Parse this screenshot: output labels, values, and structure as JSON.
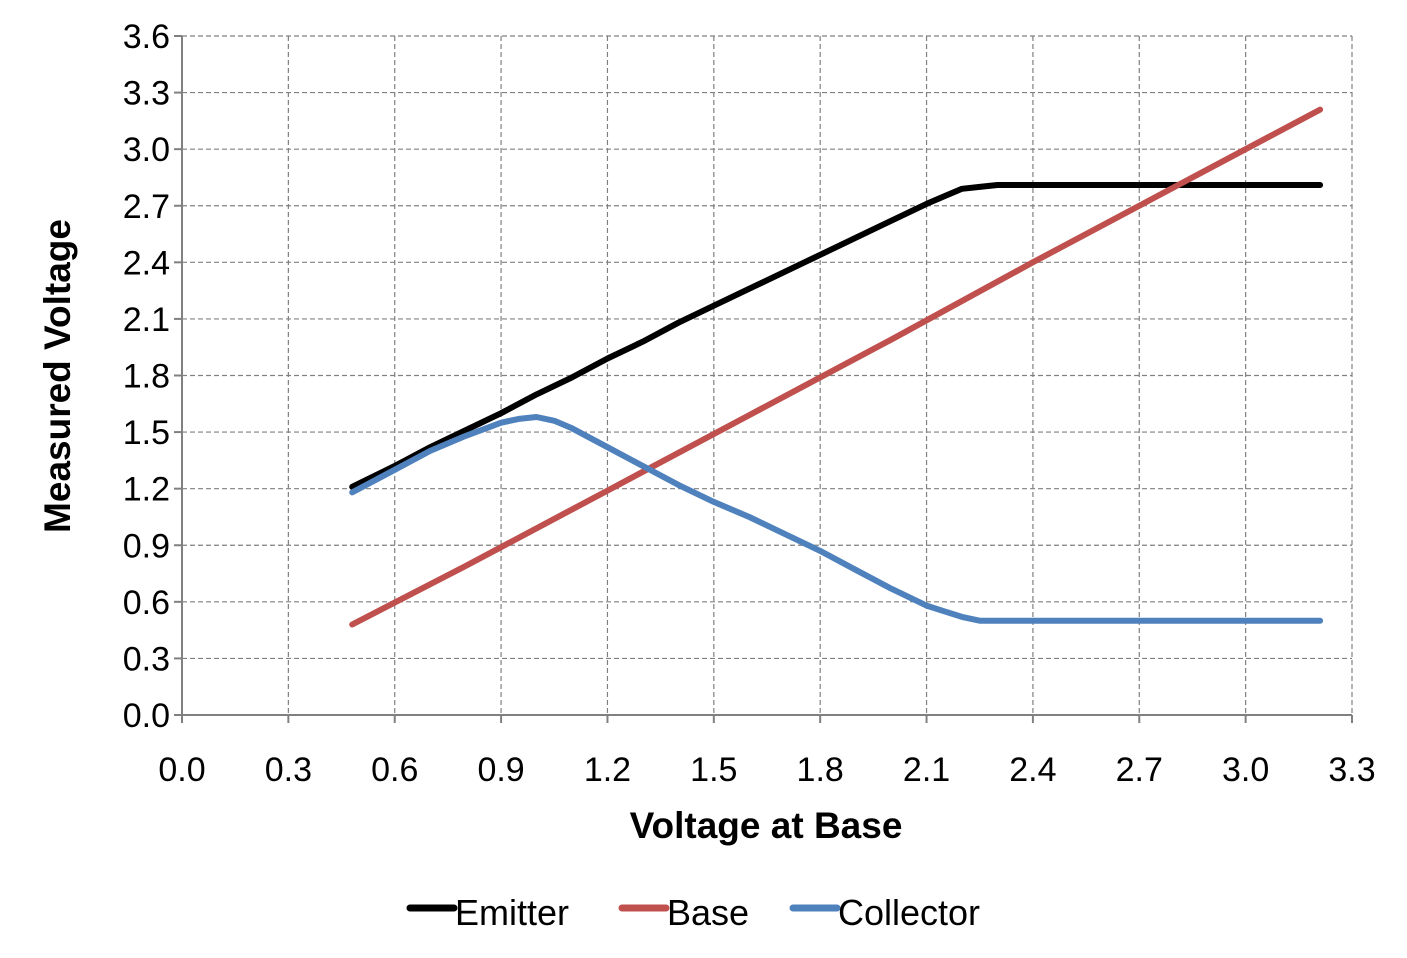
{
  "chart_data": {
    "type": "line",
    "title": "",
    "xlabel": "Voltage at Base",
    "ylabel": "Measured Voltage",
    "xlim": [
      0.0,
      3.3
    ],
    "ylim": [
      0.0,
      3.6
    ],
    "x_ticks": [
      "0.0",
      "0.3",
      "0.6",
      "0.9",
      "1.2",
      "1.5",
      "1.8",
      "2.1",
      "2.4",
      "2.7",
      "3.0",
      "3.3"
    ],
    "y_ticks": [
      "0.0",
      "0.3",
      "0.6",
      "0.9",
      "1.2",
      "1.5",
      "1.8",
      "2.1",
      "2.4",
      "2.7",
      "3.0",
      "3.3",
      "3.6"
    ],
    "grid": true,
    "legend_position": "bottom",
    "series": [
      {
        "name": "Emitter",
        "color": "#000000",
        "x": [
          0.48,
          0.6,
          0.7,
          0.8,
          0.9,
          1.0,
          1.1,
          1.2,
          1.3,
          1.4,
          1.5,
          1.6,
          1.7,
          1.8,
          1.9,
          2.0,
          2.1,
          2.15,
          2.2,
          2.25,
          2.3,
          2.4,
          2.6,
          2.8,
          3.0,
          3.21
        ],
        "y": [
          1.21,
          1.32,
          1.42,
          1.51,
          1.6,
          1.7,
          1.79,
          1.89,
          1.98,
          2.08,
          2.17,
          2.26,
          2.35,
          2.44,
          2.53,
          2.62,
          2.71,
          2.75,
          2.79,
          2.8,
          2.81,
          2.81,
          2.81,
          2.81,
          2.81,
          2.81
        ]
      },
      {
        "name": "Base",
        "color": "#c0504d",
        "x": [
          0.48,
          0.8,
          1.2,
          1.6,
          2.0,
          2.4,
          2.8,
          3.21
        ],
        "y": [
          0.48,
          0.79,
          1.19,
          1.59,
          1.99,
          2.4,
          2.8,
          3.21
        ]
      },
      {
        "name": "Collector",
        "color": "#4f81bd",
        "x": [
          0.48,
          0.6,
          0.7,
          0.8,
          0.9,
          0.95,
          1.0,
          1.05,
          1.1,
          1.2,
          1.3,
          1.4,
          1.5,
          1.6,
          1.7,
          1.8,
          1.9,
          2.0,
          2.1,
          2.15,
          2.2,
          2.25,
          2.3,
          2.5,
          2.8,
          3.21
        ],
        "y": [
          1.18,
          1.3,
          1.4,
          1.48,
          1.55,
          1.57,
          1.58,
          1.56,
          1.52,
          1.42,
          1.32,
          1.22,
          1.13,
          1.05,
          0.96,
          0.87,
          0.77,
          0.67,
          0.58,
          0.55,
          0.52,
          0.5,
          0.5,
          0.5,
          0.5,
          0.5
        ]
      }
    ]
  }
}
